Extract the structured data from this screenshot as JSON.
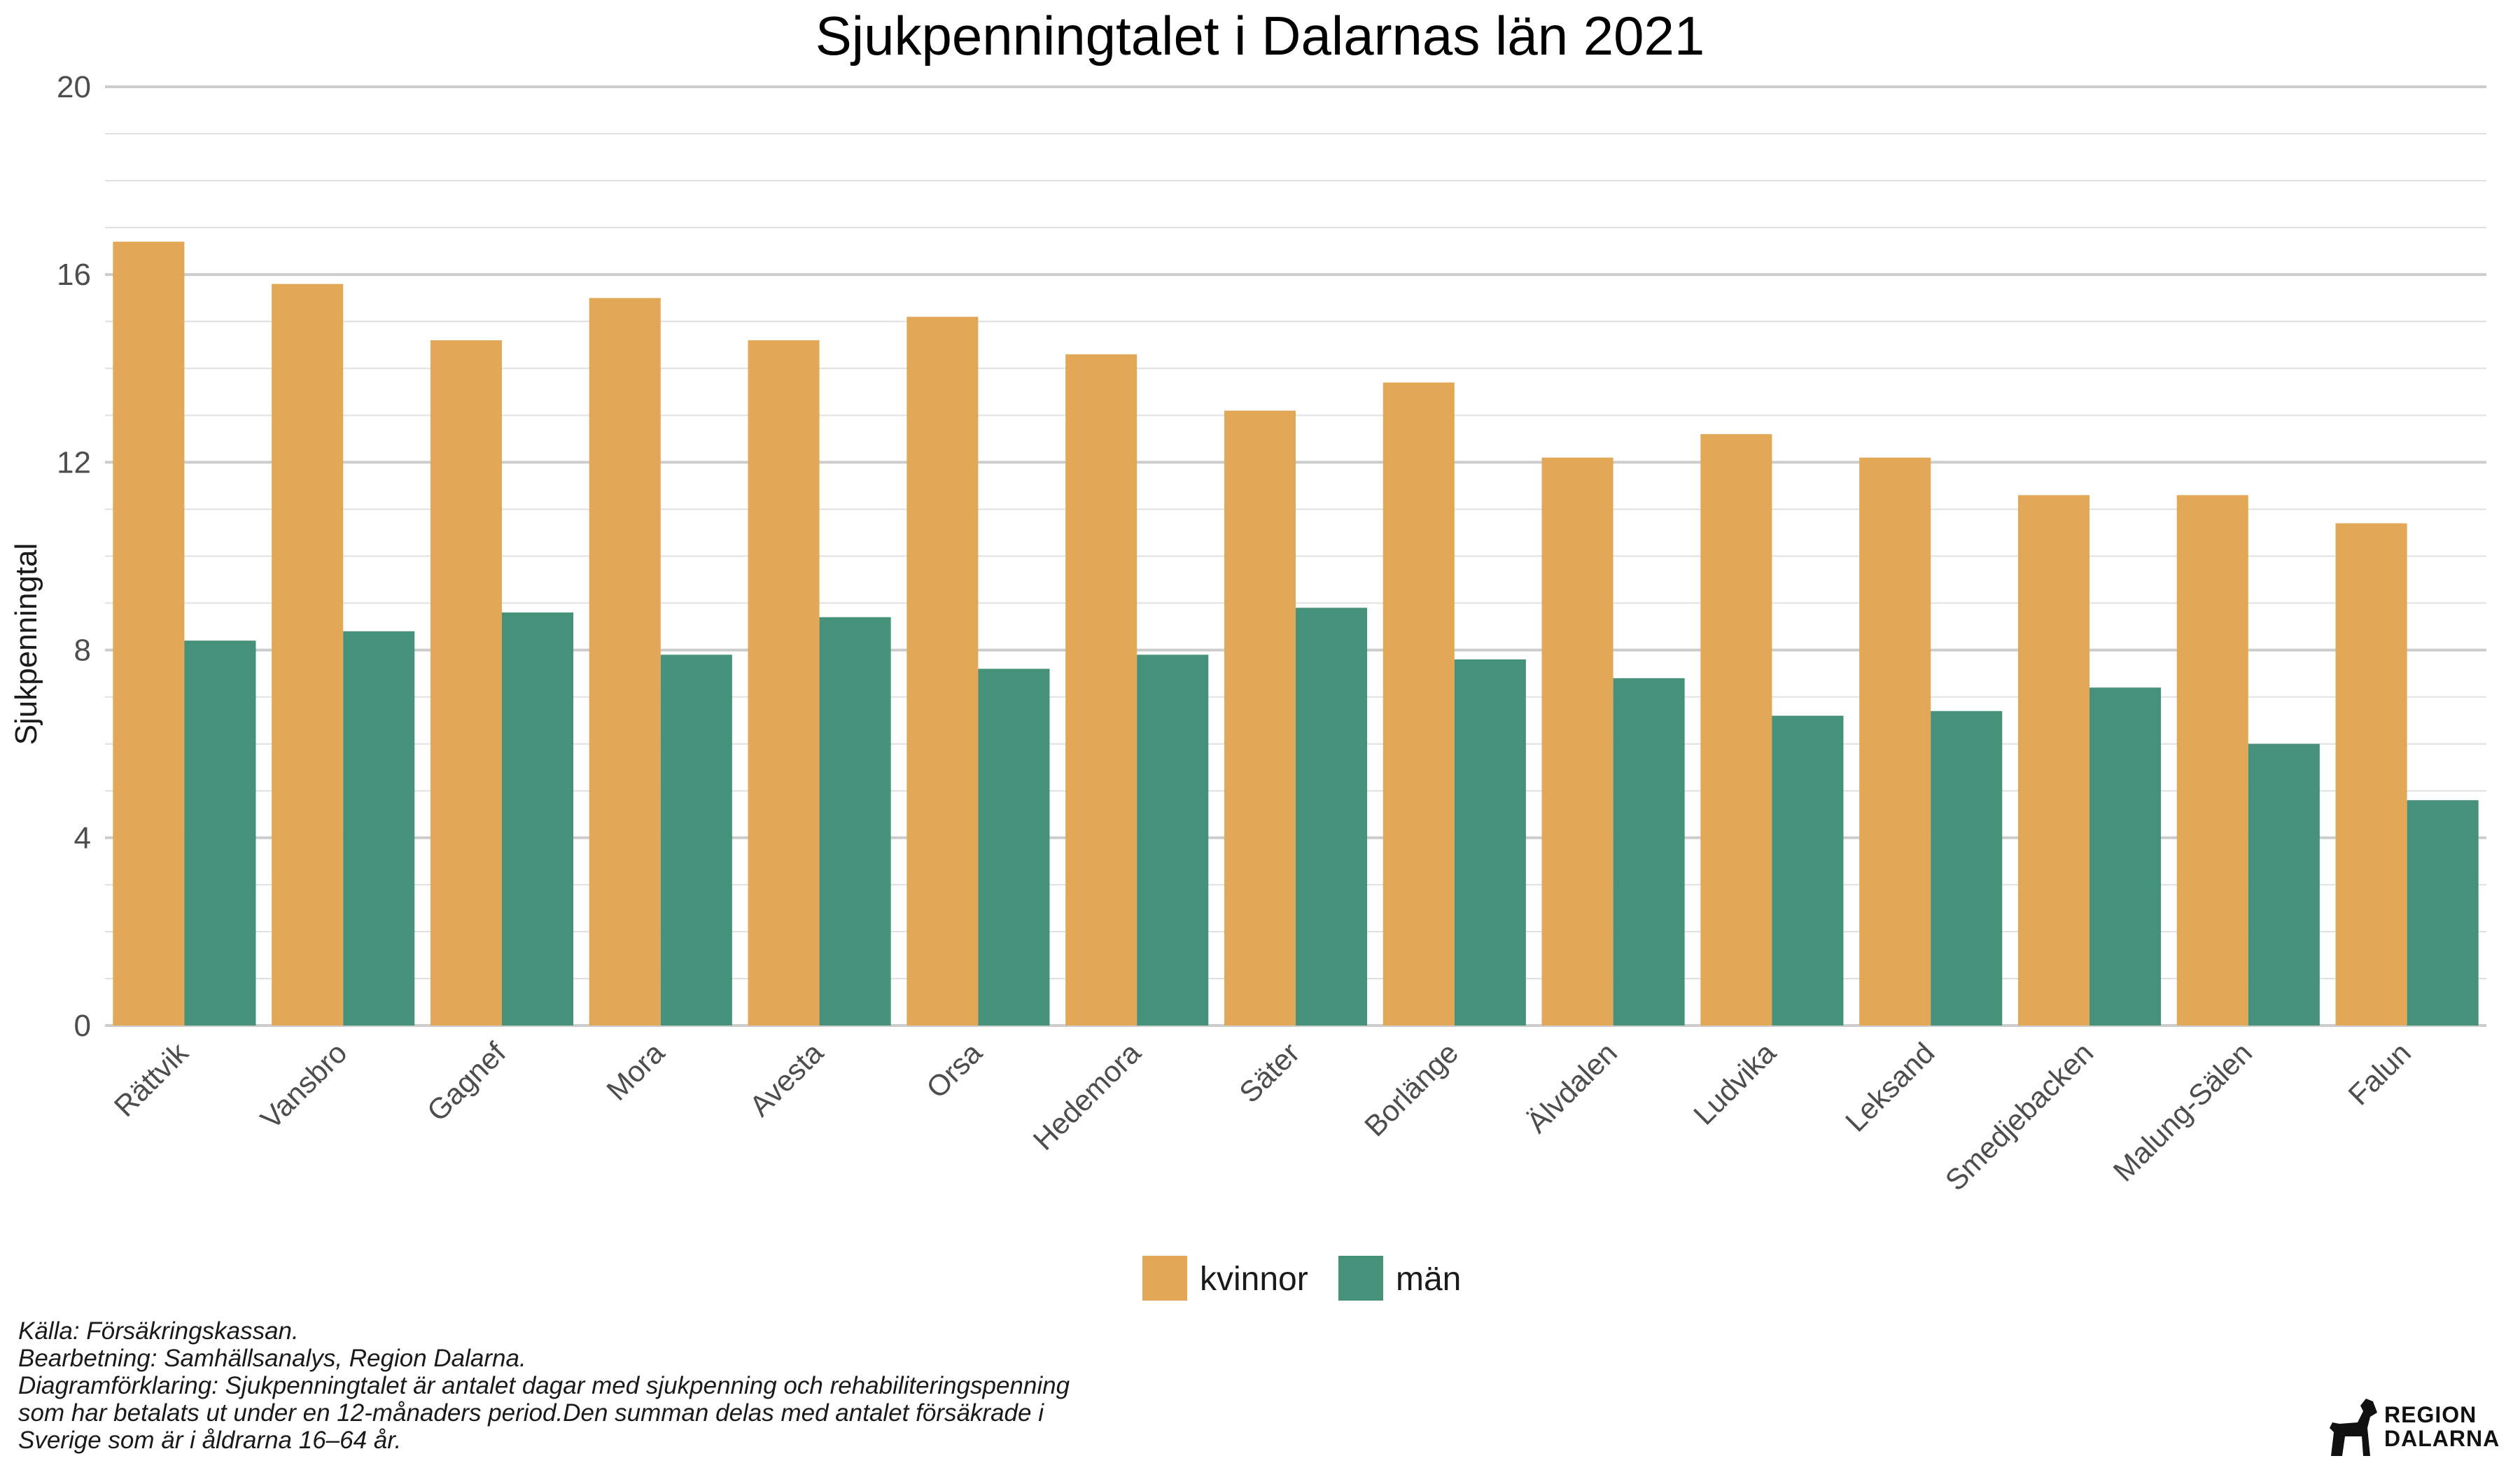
{
  "chart_data": {
    "type": "bar",
    "title": "Sjukpenningtalet i Dalarnas län 2021",
    "ylabel": "Sjukpenningtal",
    "xlabel": "",
    "ylim": [
      0,
      20
    ],
    "yticks": [
      0,
      4,
      8,
      12,
      16,
      20
    ],
    "grid": true,
    "legend_position": "bottom",
    "categories": [
      "Rättvik",
      "Vansbro",
      "Gagnef",
      "Mora",
      "Avesta",
      "Orsa",
      "Hedemora",
      "Säter",
      "Borlänge",
      "Älvdalen",
      "Ludvika",
      "Leksand",
      "Smedjebacken",
      "Malung-Sälen",
      "Falun"
    ],
    "series": [
      {
        "name": "kvinnor",
        "color": "#E3A857",
        "values": [
          16.7,
          15.8,
          14.6,
          15.5,
          14.6,
          15.1,
          14.3,
          13.1,
          13.7,
          12.1,
          12.6,
          12.1,
          11.3,
          11.3,
          10.7
        ]
      },
      {
        "name": "män",
        "color": "#45917A",
        "values": [
          8.2,
          8.4,
          8.8,
          7.9,
          8.7,
          7.6,
          7.9,
          8.9,
          7.8,
          7.4,
          6.6,
          6.7,
          7.2,
          6.0,
          4.8
        ]
      }
    ]
  },
  "caption": {
    "source": "Källa: Försäkringskassan.",
    "processing": "Bearbetning: Samhällsanalys, Region Dalarna.",
    "explanation": "Diagramförklaring: Sjukpenningtalet är antalet dagar med sjukpenning och rehabiliteringspenning\nsom har betalats ut under en 12-månaders period.Den summan delas med antalet försäkrade i\nSverige som är i åldrarna 16–64 år."
  },
  "logo": {
    "text": "REGION\nDALARNA",
    "icon": "dala-horse-icon"
  }
}
